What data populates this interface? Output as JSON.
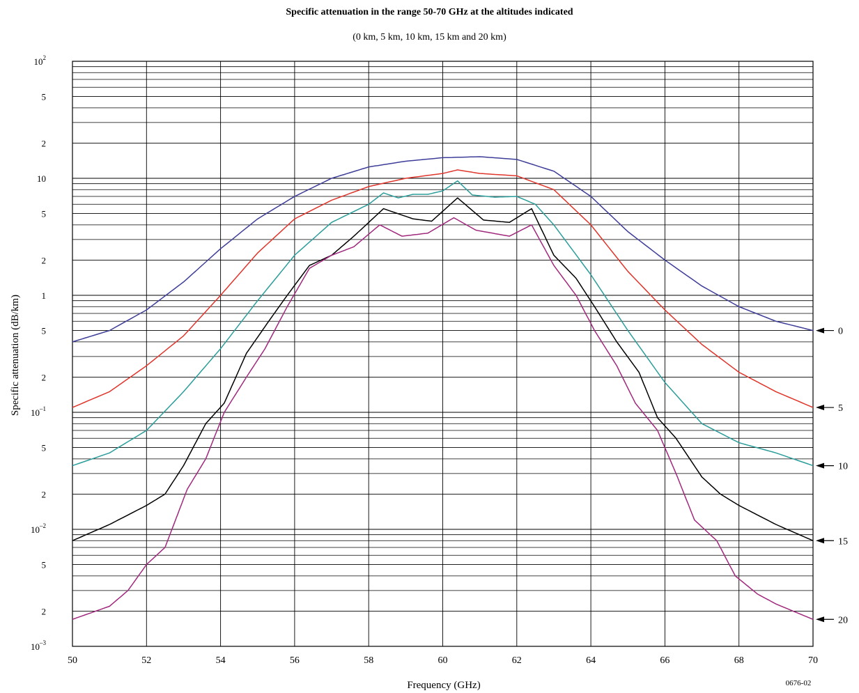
{
  "chart_data": {
    "type": "line",
    "title": "Specific attenuation in the range 50-70 GHz at the altitudes indicated",
    "subtitle": "(0 km, 5 km, 10 km, 15 km and 20 km)",
    "xlabel": "Frequency (GHz)",
    "ylabel": "Specific attenuation (dB/km)",
    "figure_id": "0676-02",
    "xlim": [
      50,
      70
    ],
    "ylim": [
      0.001,
      100
    ],
    "y_scale": "log",
    "grid": true,
    "x_ticks": [
      {
        "value": 50,
        "label": "50"
      },
      {
        "value": 52,
        "label": "52"
      },
      {
        "value": 54,
        "label": "54"
      },
      {
        "value": 56,
        "label": "56"
      },
      {
        "value": 58,
        "label": "58"
      },
      {
        "value": 60,
        "label": "60"
      },
      {
        "value": 62,
        "label": "62"
      },
      {
        "value": 64,
        "label": "64"
      },
      {
        "value": 66,
        "label": "66"
      },
      {
        "value": 68,
        "label": "68"
      },
      {
        "value": 70,
        "label": "70"
      }
    ],
    "y_ticks": [
      {
        "value": 100,
        "base": "10",
        "exp": "2"
      },
      {
        "value": 50,
        "base": "5",
        "exp": ""
      },
      {
        "value": 20,
        "base": "2",
        "exp": ""
      },
      {
        "value": 10,
        "base": "10",
        "exp": ""
      },
      {
        "value": 5,
        "base": "5",
        "exp": ""
      },
      {
        "value": 2,
        "base": "2",
        "exp": ""
      },
      {
        "value": 1,
        "base": "1",
        "exp": ""
      },
      {
        "value": 0.5,
        "base": "5",
        "exp": ""
      },
      {
        "value": 0.2,
        "base": "2",
        "exp": ""
      },
      {
        "value": 0.1,
        "base": "10",
        "exp": "–1"
      },
      {
        "value": 0.05,
        "base": "5",
        "exp": ""
      },
      {
        "value": 0.02,
        "base": "2",
        "exp": ""
      },
      {
        "value": 0.01,
        "base": "10",
        "exp": "–2"
      },
      {
        "value": 0.005,
        "base": "5",
        "exp": ""
      },
      {
        "value": 0.002,
        "base": "2",
        "exp": ""
      },
      {
        "value": 0.001,
        "base": "10",
        "exp": "–3"
      }
    ],
    "series": [
      {
        "label": "0",
        "color": "#3d3d99",
        "end_value": 0.5,
        "points": [
          [
            50,
            0.4
          ],
          [
            51,
            0.5
          ],
          [
            52,
            0.75
          ],
          [
            53,
            1.3
          ],
          [
            54,
            2.5
          ],
          [
            55,
            4.5
          ],
          [
            56,
            7.0
          ],
          [
            57,
            10.0
          ],
          [
            58,
            12.5
          ],
          [
            59,
            14.0
          ],
          [
            60,
            15.0
          ],
          [
            61,
            15.3
          ],
          [
            62,
            14.5
          ],
          [
            63,
            11.5
          ],
          [
            64,
            7.0
          ],
          [
            65,
            3.5
          ],
          [
            66,
            2.0
          ],
          [
            67,
            1.2
          ],
          [
            68,
            0.8
          ],
          [
            69,
            0.6
          ],
          [
            70,
            0.5
          ]
        ]
      },
      {
        "label": "5",
        "color": "#e0352b",
        "end_value": 0.11,
        "points": [
          [
            50,
            0.11
          ],
          [
            51,
            0.15
          ],
          [
            52,
            0.25
          ],
          [
            53,
            0.45
          ],
          [
            54,
            1.0
          ],
          [
            55,
            2.3
          ],
          [
            56,
            4.5
          ],
          [
            57,
            6.5
          ],
          [
            58,
            8.5
          ],
          [
            59,
            10.0
          ],
          [
            60,
            11.0
          ],
          [
            60.4,
            11.8
          ],
          [
            61,
            11.0
          ],
          [
            62,
            10.5
          ],
          [
            63,
            8.0
          ],
          [
            64,
            4.0
          ],
          [
            65,
            1.6
          ],
          [
            66,
            0.75
          ],
          [
            67,
            0.38
          ],
          [
            68,
            0.22
          ],
          [
            69,
            0.15
          ],
          [
            70,
            0.11
          ]
        ]
      },
      {
        "label": "10",
        "color": "#2a9d9a",
        "end_value": 0.035,
        "points": [
          [
            50,
            0.035
          ],
          [
            51,
            0.045
          ],
          [
            52,
            0.07
          ],
          [
            53,
            0.15
          ],
          [
            54,
            0.35
          ],
          [
            55,
            0.9
          ],
          [
            56,
            2.2
          ],
          [
            57,
            4.2
          ],
          [
            58,
            6.0
          ],
          [
            58.4,
            7.5
          ],
          [
            58.8,
            6.8
          ],
          [
            59.2,
            7.3
          ],
          [
            59.6,
            7.3
          ],
          [
            60,
            7.8
          ],
          [
            60.4,
            9.5
          ],
          [
            60.8,
            7.2
          ],
          [
            61.4,
            6.9
          ],
          [
            62,
            7.0
          ],
          [
            62.5,
            6.0
          ],
          [
            63,
            4.0
          ],
          [
            64,
            1.5
          ],
          [
            65,
            0.5
          ],
          [
            66,
            0.18
          ],
          [
            67,
            0.08
          ],
          [
            68,
            0.055
          ],
          [
            69,
            0.045
          ],
          [
            70,
            0.035
          ]
        ]
      },
      {
        "label": "15",
        "color": "#000000",
        "end_value": 0.008,
        "points": [
          [
            50,
            0.008
          ],
          [
            51,
            0.011
          ],
          [
            52,
            0.016
          ],
          [
            52.5,
            0.02
          ],
          [
            53,
            0.035
          ],
          [
            53.6,
            0.08
          ],
          [
            54.1,
            0.12
          ],
          [
            54.7,
            0.32
          ],
          [
            55.3,
            0.6
          ],
          [
            55.8,
            1.0
          ],
          [
            56.4,
            1.8
          ],
          [
            57,
            2.2
          ],
          [
            57.6,
            3.2
          ],
          [
            58.4,
            5.5
          ],
          [
            59.2,
            4.5
          ],
          [
            59.7,
            4.3
          ],
          [
            60.4,
            6.8
          ],
          [
            61.1,
            4.4
          ],
          [
            61.8,
            4.2
          ],
          [
            62.4,
            5.5
          ],
          [
            63,
            2.2
          ],
          [
            63.6,
            1.4
          ],
          [
            64.1,
            0.8
          ],
          [
            64.7,
            0.4
          ],
          [
            65.3,
            0.22
          ],
          [
            65.8,
            0.09
          ],
          [
            66.3,
            0.06
          ],
          [
            67,
            0.028
          ],
          [
            67.5,
            0.02
          ],
          [
            68,
            0.016
          ],
          [
            69,
            0.011
          ],
          [
            70,
            0.008
          ]
        ]
      },
      {
        "label": "20",
        "color": "#a0287d",
        "end_value": 0.0017,
        "points": [
          [
            50,
            0.0017
          ],
          [
            51,
            0.0022
          ],
          [
            51.5,
            0.003
          ],
          [
            52,
            0.005
          ],
          [
            52.5,
            0.007
          ],
          [
            53.1,
            0.022
          ],
          [
            53.6,
            0.04
          ],
          [
            54.1,
            0.1
          ],
          [
            54.7,
            0.2
          ],
          [
            55.2,
            0.35
          ],
          [
            55.8,
            0.8
          ],
          [
            56.4,
            1.7
          ],
          [
            57,
            2.2
          ],
          [
            57.6,
            2.6
          ],
          [
            58.3,
            4.0
          ],
          [
            58.9,
            3.2
          ],
          [
            59.6,
            3.4
          ],
          [
            60.3,
            4.6
          ],
          [
            60.9,
            3.6
          ],
          [
            61.8,
            3.2
          ],
          [
            62.4,
            4.0
          ],
          [
            63,
            1.8
          ],
          [
            63.6,
            1.0
          ],
          [
            64.1,
            0.5
          ],
          [
            64.7,
            0.25
          ],
          [
            65.2,
            0.12
          ],
          [
            65.8,
            0.07
          ],
          [
            66.3,
            0.03
          ],
          [
            66.8,
            0.012
          ],
          [
            67.4,
            0.008
          ],
          [
            67.9,
            0.004
          ],
          [
            68.5,
            0.0028
          ],
          [
            69,
            0.0023
          ],
          [
            70,
            0.0017
          ]
        ]
      }
    ]
  }
}
